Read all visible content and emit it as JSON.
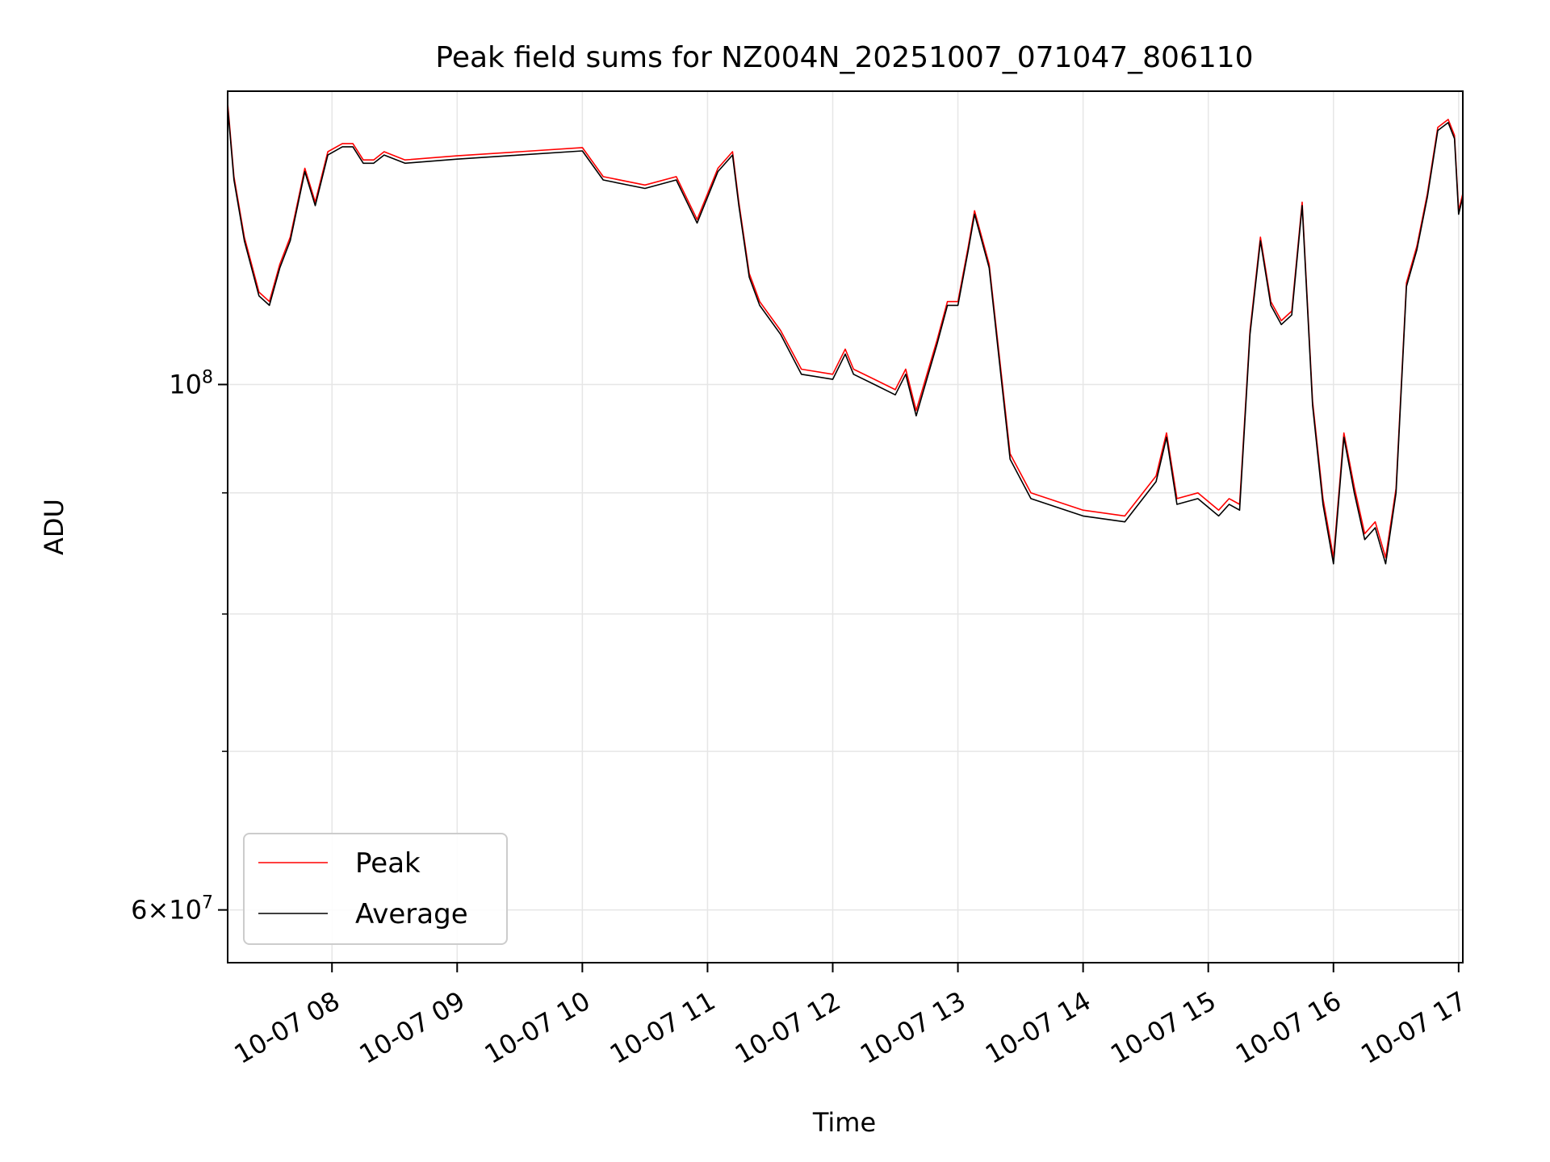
{
  "chart_data": {
    "type": "line",
    "title": "Peak field sums for NZ004N_20251007_071047_806110",
    "xlabel": "Time",
    "ylabel": "ADU",
    "x_axis": "datetime",
    "xlim": [
      "2025-10-07 07:10",
      "2025-10-07 17:02"
    ],
    "xticks": [
      "2025-10-07 08:00",
      "2025-10-07 09:00",
      "2025-10-07 10:00",
      "2025-10-07 11:00",
      "2025-10-07 12:00",
      "2025-10-07 13:00",
      "2025-10-07 14:00",
      "2025-10-07 15:00",
      "2025-10-07 16:00",
      "2025-10-07 17:00"
    ],
    "xtick_labels": [
      "10-07 08",
      "10-07 09",
      "10-07 10",
      "10-07 11",
      "10-07 12",
      "10-07 13",
      "10-07 14",
      "10-07 15",
      "10-07 16",
      "10-07 17"
    ],
    "y_scale": "log",
    "ylim": [
      57000000,
      133000000
    ],
    "yticks_major": [
      60000000,
      100000000
    ],
    "ytick_labels": [
      {
        "value": 60000000,
        "mantissa": "6",
        "base": "10",
        "exponent": "7"
      },
      {
        "value": 100000000,
        "mantissa": "",
        "base": "10",
        "exponent": "8"
      }
    ],
    "yticks_minor": [
      70000000,
      80000000,
      90000000
    ],
    "grid": true,
    "legend": {
      "position": "lower-left",
      "entries": [
        "Peak",
        "Average"
      ]
    },
    "colors": {
      "Peak": "#ff0000",
      "Average": "#000000"
    },
    "series": [
      {
        "name": "Average",
        "x": [
          "2025-10-07 07:10",
          "2025-10-07 07:13",
          "2025-10-07 07:18",
          "2025-10-07 07:25",
          "2025-10-07 07:30",
          "2025-10-07 07:35",
          "2025-10-07 07:40",
          "2025-10-07 07:47",
          "2025-10-07 07:52",
          "2025-10-07 07:58",
          "2025-10-07 08:05",
          "2025-10-07 08:10",
          "2025-10-07 08:15",
          "2025-10-07 08:20",
          "2025-10-07 08:25",
          "2025-10-07 08:35",
          "2025-10-07 09:00",
          "2025-10-07 09:30",
          "2025-10-07 10:00",
          "2025-10-07 10:10",
          "2025-10-07 10:30",
          "2025-10-07 10:45",
          "2025-10-07 10:55",
          "2025-10-07 11:05",
          "2025-10-07 11:12",
          "2025-10-07 11:15",
          "2025-10-07 11:20",
          "2025-10-07 11:25",
          "2025-10-07 11:35",
          "2025-10-07 11:45",
          "2025-10-07 12:00",
          "2025-10-07 12:06",
          "2025-10-07 12:10",
          "2025-10-07 12:20",
          "2025-10-07 12:30",
          "2025-10-07 12:35",
          "2025-10-07 12:40",
          "2025-10-07 12:50",
          "2025-10-07 12:55",
          "2025-10-07 13:00",
          "2025-10-07 13:05",
          "2025-10-07 13:08",
          "2025-10-07 13:15",
          "2025-10-07 13:20",
          "2025-10-07 13:25",
          "2025-10-07 13:35",
          "2025-10-07 14:00",
          "2025-10-07 14:20",
          "2025-10-07 14:35",
          "2025-10-07 14:40",
          "2025-10-07 14:45",
          "2025-10-07 14:55",
          "2025-10-07 15:05",
          "2025-10-07 15:10",
          "2025-10-07 15:15",
          "2025-10-07 15:20",
          "2025-10-07 15:25",
          "2025-10-07 15:30",
          "2025-10-07 15:35",
          "2025-10-07 15:40",
          "2025-10-07 15:45",
          "2025-10-07 15:50",
          "2025-10-07 15:55",
          "2025-10-07 16:00",
          "2025-10-07 16:05",
          "2025-10-07 16:10",
          "2025-10-07 16:15",
          "2025-10-07 16:20",
          "2025-10-07 16:25",
          "2025-10-07 16:30",
          "2025-10-07 16:35",
          "2025-10-07 16:40",
          "2025-10-07 16:45",
          "2025-10-07 16:50",
          "2025-10-07 16:55",
          "2025-10-07 16:58",
          "2025-10-07 17:00",
          "2025-10-07 17:02"
        ],
        "values": [
          131000000,
          122000000,
          115000000,
          109000000,
          108000000,
          112000000,
          115000000,
          123000000,
          119000000,
          125000000,
          126000000,
          126000000,
          124000000,
          124000000,
          125000000,
          124000000,
          124500000,
          125000000,
          125500000,
          122000000,
          121000000,
          122000000,
          117000000,
          123000000,
          125000000,
          119000000,
          111000000,
          108000000,
          105000000,
          101000000,
          100500000,
          103000000,
          101000000,
          100000000,
          99000000,
          101000000,
          97000000,
          104000000,
          108000000,
          108000000,
          114000000,
          118000000,
          112000000,
          102000000,
          93000000,
          89500000,
          88000000,
          87500000,
          91000000,
          95000000,
          89000000,
          89500000,
          88000000,
          89000000,
          88500000,
          105000000,
          115000000,
          108000000,
          106000000,
          107000000,
          119000000,
          98000000,
          89000000,
          84000000,
          95000000,
          90000000,
          86000000,
          87000000,
          84000000,
          90000000,
          110000000,
          114000000,
          120000000,
          128000000,
          129000000,
          127000000,
          118000000,
          120000000
        ]
      },
      {
        "name": "Peak",
        "x": [
          "2025-10-07 07:10",
          "2025-10-07 07:13",
          "2025-10-07 07:18",
          "2025-10-07 07:25",
          "2025-10-07 07:30",
          "2025-10-07 07:35",
          "2025-10-07 07:40",
          "2025-10-07 07:47",
          "2025-10-07 07:52",
          "2025-10-07 07:58",
          "2025-10-07 08:05",
          "2025-10-07 08:10",
          "2025-10-07 08:15",
          "2025-10-07 08:20",
          "2025-10-07 08:25",
          "2025-10-07 08:35",
          "2025-10-07 09:00",
          "2025-10-07 09:30",
          "2025-10-07 10:00",
          "2025-10-07 10:10",
          "2025-10-07 10:30",
          "2025-10-07 10:45",
          "2025-10-07 10:55",
          "2025-10-07 11:05",
          "2025-10-07 11:12",
          "2025-10-07 11:15",
          "2025-10-07 11:20",
          "2025-10-07 11:25",
          "2025-10-07 11:35",
          "2025-10-07 11:45",
          "2025-10-07 12:00",
          "2025-10-07 12:06",
          "2025-10-07 12:10",
          "2025-10-07 12:20",
          "2025-10-07 12:30",
          "2025-10-07 12:35",
          "2025-10-07 12:40",
          "2025-10-07 12:50",
          "2025-10-07 12:55",
          "2025-10-07 13:00",
          "2025-10-07 13:05",
          "2025-10-07 13:08",
          "2025-10-07 13:15",
          "2025-10-07 13:20",
          "2025-10-07 13:25",
          "2025-10-07 13:35",
          "2025-10-07 14:00",
          "2025-10-07 14:20",
          "2025-10-07 14:35",
          "2025-10-07 14:40",
          "2025-10-07 14:45",
          "2025-10-07 14:55",
          "2025-10-07 15:05",
          "2025-10-07 15:10",
          "2025-10-07 15:15",
          "2025-10-07 15:20",
          "2025-10-07 15:25",
          "2025-10-07 15:30",
          "2025-10-07 15:35",
          "2025-10-07 15:40",
          "2025-10-07 15:45",
          "2025-10-07 15:50",
          "2025-10-07 15:55",
          "2025-10-07 16:00",
          "2025-10-07 16:05",
          "2025-10-07 16:10",
          "2025-10-07 16:15",
          "2025-10-07 16:20",
          "2025-10-07 16:25",
          "2025-10-07 16:30",
          "2025-10-07 16:35",
          "2025-10-07 16:40",
          "2025-10-07 16:45",
          "2025-10-07 16:50",
          "2025-10-07 16:55",
          "2025-10-07 16:58",
          "2025-10-07 17:00",
          "2025-10-07 17:02"
        ],
        "values": [
          131500000,
          122400000,
          115400000,
          109400000,
          108400000,
          112400000,
          115400000,
          123400000,
          119400000,
          125400000,
          126400000,
          126400000,
          124400000,
          124400000,
          125400000,
          124400000,
          124900000,
          125400000,
          125900000,
          122400000,
          121400000,
          122400000,
          117400000,
          123400000,
          125400000,
          119400000,
          111400000,
          108400000,
          105400000,
          101500000,
          101000000,
          103500000,
          101500000,
          100500000,
          99500000,
          101500000,
          97500000,
          104400000,
          108400000,
          108400000,
          114400000,
          118400000,
          112400000,
          102500000,
          93500000,
          90000000,
          88500000,
          88000000,
          91500000,
          95400000,
          89500000,
          90000000,
          88500000,
          89500000,
          89000000,
          105400000,
          115400000,
          108400000,
          106400000,
          107400000,
          119400000,
          98400000,
          89500000,
          84500000,
          95400000,
          90500000,
          86500000,
          87500000,
          84500000,
          90400000,
          110400000,
          114400000,
          120400000,
          128400000,
          129400000,
          127400000,
          118400000,
          120400000
        ]
      }
    ]
  }
}
